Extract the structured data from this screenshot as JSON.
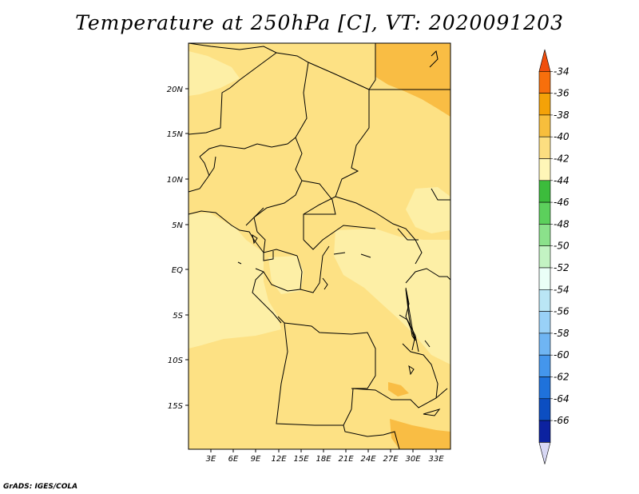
{
  "title": "Temperature at 250hPa [C], VT: 2020091203",
  "credit": "GrADS: IGES/COLA",
  "map": {
    "lon_labels": [
      "3E",
      "6E",
      "9E",
      "12E",
      "15E",
      "18E",
      "21E",
      "24E",
      "27E",
      "30E",
      "33E"
    ],
    "lat_labels": [
      "20N",
      "15N",
      "10N",
      "5N",
      "EQ",
      "5S",
      "10S",
      "15S"
    ],
    "region": "Central Africa"
  },
  "colorbar": {
    "labels": [
      "-34",
      "-36",
      "-38",
      "-40",
      "-42",
      "-44",
      "-46",
      "-48",
      "-50",
      "-52",
      "-54",
      "-56",
      "-58",
      "-60",
      "-62",
      "-64",
      "-66"
    ],
    "colors": [
      "#f04e0c",
      "#f76f0c",
      "#f4a208",
      "#f7be3c",
      "#fcde80",
      "#fff6b8",
      "#3cbc3c",
      "#5cd05c",
      "#8be18b",
      "#c3f3c3",
      "#eafff7",
      "#bae6f5",
      "#99d1f7",
      "#6fb5f3",
      "#4496ec",
      "#1f72db",
      "#0c4ec1",
      "#0c22a0",
      "#d8d8f4"
    ]
  }
}
